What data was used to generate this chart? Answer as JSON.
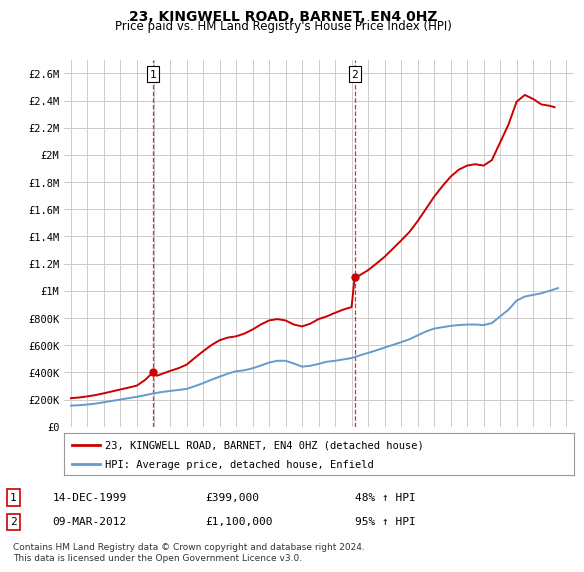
{
  "title": "23, KINGWELL ROAD, BARNET, EN4 0HZ",
  "subtitle": "Price paid vs. HM Land Registry's House Price Index (HPI)",
  "legend_line1": "23, KINGWELL ROAD, BARNET, EN4 0HZ (detached house)",
  "legend_line2": "HPI: Average price, detached house, Enfield",
  "annotation1_label": "1",
  "annotation1_date": "14-DEC-1999",
  "annotation1_price": "£399,000",
  "annotation1_hpi": "48% ↑ HPI",
  "annotation1_year": 1999.96,
  "annotation1_value": 399000,
  "annotation2_label": "2",
  "annotation2_date": "09-MAR-2012",
  "annotation2_price": "£1,100,000",
  "annotation2_hpi": "95% ↑ HPI",
  "annotation2_year": 2012.19,
  "annotation2_value": 1100000,
  "red_color": "#cc0000",
  "blue_color": "#6699cc",
  "grid_color": "#cccccc",
  "background_color": "#ffffff",
  "ylim": [
    0,
    2700000
  ],
  "xlim_start": 1994.6,
  "xlim_end": 2025.5,
  "footnote": "Contains HM Land Registry data © Crown copyright and database right 2024.\nThis data is licensed under the Open Government Licence v3.0.",
  "hpi_years": [
    1995,
    1995.5,
    1996,
    1996.5,
    1997,
    1997.5,
    1998,
    1998.5,
    1999,
    1999.5,
    2000,
    2000.5,
    2001,
    2001.5,
    2002,
    2002.5,
    2003,
    2003.5,
    2004,
    2004.5,
    2005,
    2005.5,
    2006,
    2006.5,
    2007,
    2007.5,
    2008,
    2008.5,
    2009,
    2009.5,
    2010,
    2010.5,
    2011,
    2011.5,
    2012,
    2012.5,
    2013,
    2013.5,
    2014,
    2014.5,
    2015,
    2015.5,
    2016,
    2016.5,
    2017,
    2017.5,
    2018,
    2018.5,
    2019,
    2019.5,
    2020,
    2020.5,
    2021,
    2021.5,
    2022,
    2022.5,
    2023,
    2023.5,
    2024,
    2024.5
  ],
  "hpi_values": [
    155000,
    158000,
    163000,
    170000,
    180000,
    190000,
    200000,
    210000,
    220000,
    232000,
    245000,
    255000,
    263000,
    270000,
    278000,
    298000,
    320000,
    345000,
    368000,
    390000,
    408000,
    415000,
    430000,
    450000,
    472000,
    485000,
    485000,
    465000,
    442000,
    448000,
    462000,
    478000,
    485000,
    495000,
    505000,
    525000,
    543000,
    562000,
    582000,
    602000,
    622000,
    643000,
    672000,
    700000,
    722000,
    732000,
    742000,
    748000,
    752000,
    752000,
    748000,
    762000,
    812000,
    860000,
    928000,
    958000,
    970000,
    982000,
    1000000,
    1020000
  ],
  "red_years": [
    1995,
    1995.5,
    1996,
    1996.5,
    1997,
    1997.5,
    1998,
    1998.5,
    1999,
    1999.5,
    1999.96,
    2000.2,
    2000.5,
    2001,
    2001.5,
    2002,
    2002.5,
    2003,
    2003.5,
    2004,
    2004.5,
    2005,
    2005.5,
    2006,
    2006.5,
    2007,
    2007.5,
    2008,
    2008.5,
    2009,
    2009.5,
    2010,
    2010.5,
    2011,
    2011.5,
    2012.0,
    2012.19,
    2012.5,
    2013,
    2013.5,
    2014,
    2014.5,
    2015,
    2015.5,
    2016,
    2016.5,
    2017,
    2017.5,
    2018,
    2018.5,
    2019,
    2019.5,
    2020,
    2020.5,
    2021,
    2021.5,
    2022,
    2022.5,
    2023,
    2023.5,
    2024,
    2024.3
  ],
  "red_values": [
    210000,
    215000,
    223000,
    233000,
    246000,
    260000,
    274000,
    288000,
    303000,
    345000,
    399000,
    375000,
    388000,
    410000,
    430000,
    456000,
    506000,
    555000,
    600000,
    636000,
    656000,
    665000,
    685000,
    715000,
    752000,
    782000,
    792000,
    782000,
    752000,
    738000,
    758000,
    792000,
    812000,
    838000,
    862000,
    880000,
    1100000,
    1115000,
    1152000,
    1200000,
    1250000,
    1310000,
    1370000,
    1432000,
    1512000,
    1602000,
    1692000,
    1770000,
    1840000,
    1892000,
    1922000,
    1932000,
    1922000,
    1962000,
    2092000,
    2222000,
    2392000,
    2442000,
    2412000,
    2372000,
    2362000,
    2352000
  ]
}
